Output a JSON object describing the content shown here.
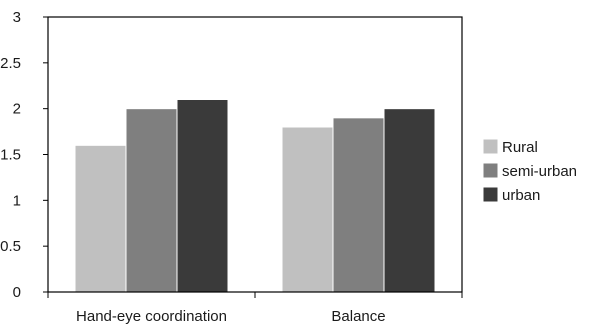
{
  "chart_data": {
    "type": "bar",
    "title": "",
    "xlabel": "",
    "ylabel": "",
    "categories": [
      "Hand-eye coordination",
      "Balance"
    ],
    "series": [
      {
        "name": "Rural",
        "values": [
          1.6,
          1.8
        ],
        "color": "#c0c0c0"
      },
      {
        "name": "semi-urban",
        "values": [
          2.0,
          1.9
        ],
        "color": "#7f7f7f"
      },
      {
        "name": "urban",
        "values": [
          2.1,
          2.0
        ],
        "color": "#3a3a3a"
      }
    ],
    "ylim": [
      0,
      3
    ],
    "yticks": [
      "0",
      "0.5",
      "1",
      "1.5",
      "2",
      "2.5",
      "3"
    ],
    "grid": false,
    "legend_position": "right",
    "frame_color": "#000000",
    "bar_border_color": "#ffffff"
  }
}
